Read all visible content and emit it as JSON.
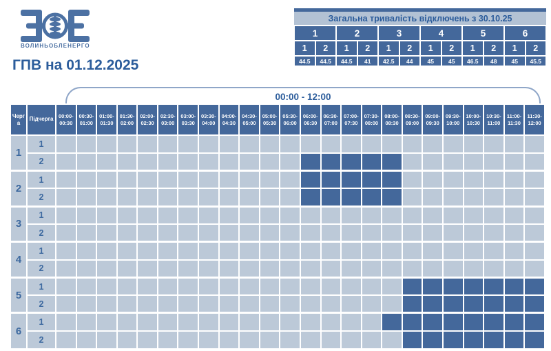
{
  "brand": {
    "name": "ВОЛИНЬОБЛЕНЕРГО",
    "logo_icon": "volynoblenergo-zoe-logo"
  },
  "page_title": "ГПВ на 01.12.2025",
  "summary_table": {
    "title": "Загальна тривалість відключень з 30.10.25",
    "queue_headers": [
      "1",
      "2",
      "3",
      "4",
      "5",
      "6"
    ],
    "subqueue_headers": [
      "1",
      "2",
      "1",
      "2",
      "1",
      "2",
      "1",
      "2",
      "1",
      "2",
      "1",
      "2"
    ],
    "totals_hours": [
      "44.5",
      "44.5",
      "44.5",
      "41",
      "42.5",
      "44",
      "45",
      "45",
      "46.5",
      "48",
      "45",
      "45.5"
    ]
  },
  "schedule_table": {
    "time_range_label": "00:00 - 12:00",
    "queue_col_header": "Черга",
    "subqueue_col_header": "Підчерга",
    "time_slots": [
      "00:00-00:30",
      "00:30-01:00",
      "01:00-01:30",
      "01:30-02:00",
      "02:00-02:30",
      "02:30-03:00",
      "03:00-03:30",
      "03:30-04:00",
      "04:00-04:30",
      "04:30-05:00",
      "05:00-05:30",
      "05:30-06:00",
      "06:00-06:30",
      "06:30-07:00",
      "07:00-07:30",
      "07:30-08:00",
      "08:00-08:30",
      "08:30-09:00",
      "09:00-09:30",
      "09:30-10:00",
      "10:00-10:30",
      "10:30-11:00",
      "11:00-11:30",
      "11:30-12:00"
    ],
    "rows": [
      {
        "queue": "1",
        "subqueue": "1",
        "outage_slots": []
      },
      {
        "queue": "1",
        "subqueue": "2",
        "outage_slots": [
          "06:00-06:30",
          "06:30-07:00",
          "07:00-07:30",
          "07:30-08:00",
          "08:00-08:30"
        ]
      },
      {
        "queue": "2",
        "subqueue": "1",
        "outage_slots": [
          "06:00-06:30",
          "06:30-07:00",
          "07:00-07:30",
          "07:30-08:00",
          "08:00-08:30"
        ]
      },
      {
        "queue": "2",
        "subqueue": "2",
        "outage_slots": [
          "06:00-06:30",
          "06:30-07:00",
          "07:00-07:30",
          "07:30-08:00",
          "08:00-08:30"
        ]
      },
      {
        "queue": "3",
        "subqueue": "1",
        "outage_slots": []
      },
      {
        "queue": "3",
        "subqueue": "2",
        "outage_slots": []
      },
      {
        "queue": "4",
        "subqueue": "1",
        "outage_slots": []
      },
      {
        "queue": "4",
        "subqueue": "2",
        "outage_slots": []
      },
      {
        "queue": "5",
        "subqueue": "1",
        "outage_slots": [
          "08:30-09:00",
          "09:00-09:30",
          "09:30-10:00",
          "10:00-10:30",
          "10:30-11:00",
          "11:00-11:30",
          "11:30-12:00"
        ]
      },
      {
        "queue": "5",
        "subqueue": "2",
        "outage_slots": [
          "08:30-09:00",
          "09:00-09:30",
          "09:30-10:00",
          "10:00-10:30",
          "10:30-11:00",
          "11:00-11:30",
          "11:30-12:00"
        ]
      },
      {
        "queue": "6",
        "subqueue": "1",
        "outage_slots": [
          "08:00-08:30",
          "08:30-09:00",
          "09:00-09:30",
          "09:30-10:00",
          "10:00-10:30",
          "10:30-11:00",
          "11:00-11:30",
          "11:30-12:00"
        ]
      },
      {
        "queue": "6",
        "subqueue": "2",
        "outage_slots": [
          "08:30-09:00",
          "09:00-09:30",
          "09:30-10:00",
          "10:00-10:30",
          "10:30-11:00",
          "11:00-11:30",
          "11:30-12:00"
        ]
      }
    ]
  },
  "colors": {
    "primary_blue": "#44689B",
    "light_cell": "#BCC9D8",
    "summary_title_bg": "#B3C2D4",
    "accent_text": "#2B5C9B",
    "label_text": "#3E6AA0",
    "grid_line": "#FFFFFF",
    "bracket_line": "#8FA6C8",
    "logo_blue": "#4C71A3"
  }
}
